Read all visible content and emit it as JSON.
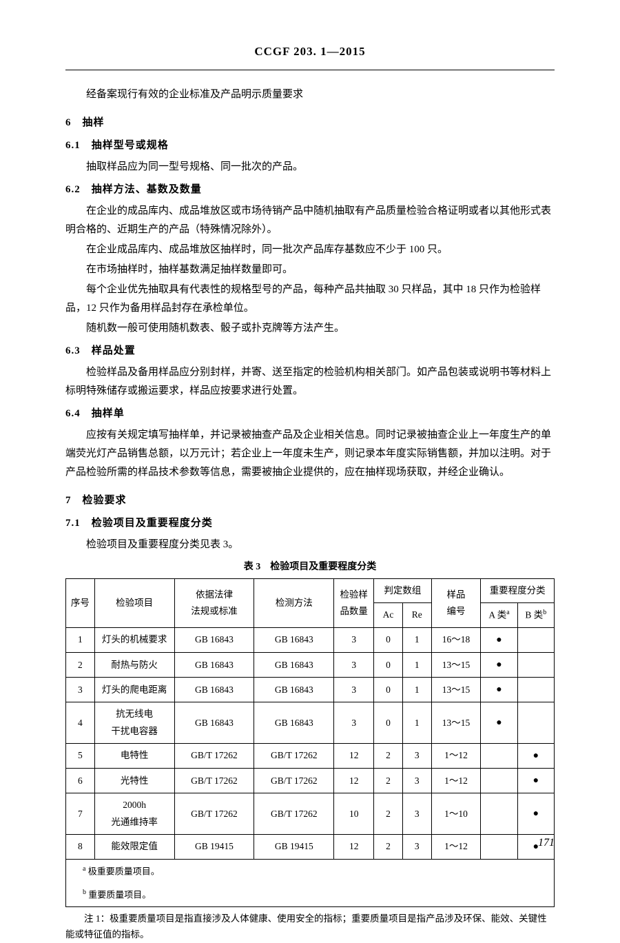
{
  "header": {
    "title": "CCGF 203. 1—2015"
  },
  "intro": {
    "line": "经备案现行有效的企业标准及产品明示质量要求"
  },
  "s6": {
    "title": "6　抽样",
    "s6_1": {
      "title": "6.1　抽样型号或规格",
      "p1": "抽取样品应为同一型号规格、同一批次的产品。"
    },
    "s6_2": {
      "title": "6.2　抽样方法、基数及数量",
      "p1": "在企业的成品库内、成品堆放区或市场待销产品中随机抽取有产品质量检验合格证明或者以其他形式表明合格的、近期生产的产品（特殊情况除外）。",
      "p2": "在企业成品库内、成品堆放区抽样时，同一批次产品库存基数应不少于 100 只。",
      "p3": "在市场抽样时，抽样基数满足抽样数量即可。",
      "p4": "每个企业优先抽取具有代表性的规格型号的产品，每种产品共抽取 30 只样品，其中 18 只作为检验样品，12 只作为备用样品封存在承检单位。",
      "p5": "随机数一般可使用随机数表、骰子或扑克牌等方法产生。"
    },
    "s6_3": {
      "title": "6.3　样品处置",
      "p1": "检验样品及备用样品应分别封样，并寄、送至指定的检验机构相关部门。如产品包装或说明书等材料上标明特殊储存或搬运要求，样品应按要求进行处置。"
    },
    "s6_4": {
      "title": "6.4　抽样单",
      "p1": "应按有关规定填写抽样单，并记录被抽查产品及企业相关信息。同时记录被抽查企业上一年度生产的单端荧光灯产品销售总额，以万元计；若企业上一年度未生产，则记录本年度实际销售额，并加以注明。对于产品检验所需的样品技术参数等信息，需要被抽企业提供的，应在抽样现场获取，并经企业确认。"
    }
  },
  "s7": {
    "title": "7　检验要求",
    "s7_1": {
      "title": "7.1　检验项目及重要程度分类",
      "p1": "检验项目及重要程度分类见表 3。"
    }
  },
  "table3": {
    "caption": "表 3　检验项目及重要程度分类",
    "head": {
      "c1": "序号",
      "c2": "检验项目",
      "c3_l1": "依据法律",
      "c3_l2": "法规或标准",
      "c4": "检测方法",
      "c5_l1": "检验样",
      "c5_l2": "品数量",
      "c6": "判定数组",
      "c6a": "Ac",
      "c6b": "Re",
      "c7_l1": "样品",
      "c7_l2": "编号",
      "c8": "重要程度分类",
      "c8a": "A 类",
      "c8a_sup": "a",
      "c8b": "B 类",
      "c8b_sup": "b"
    },
    "rows": [
      {
        "n": "1",
        "item": "灯头的机械要求",
        "law": "GB 16843",
        "method": "GB 16843",
        "qty": "3",
        "ac": "0",
        "re": "1",
        "sid": "16～18",
        "a": "●",
        "b": ""
      },
      {
        "n": "2",
        "item": "耐热与防火",
        "law": "GB 16843",
        "method": "GB 16843",
        "qty": "3",
        "ac": "0",
        "re": "1",
        "sid": "13～15",
        "a": "●",
        "b": ""
      },
      {
        "n": "3",
        "item": "灯头的爬电距离",
        "law": "GB 16843",
        "method": "GB 16843",
        "qty": "3",
        "ac": "0",
        "re": "1",
        "sid": "13～15",
        "a": "●",
        "b": ""
      },
      {
        "n": "4",
        "item_l1": "抗无线电",
        "item_l2": "干扰电容器",
        "law": "GB 16843",
        "method": "GB 16843",
        "qty": "3",
        "ac": "0",
        "re": "1",
        "sid": "13～15",
        "a": "●",
        "b": ""
      },
      {
        "n": "5",
        "item": "电特性",
        "law": "GB/T 17262",
        "method": "GB/T 17262",
        "qty": "12",
        "ac": "2",
        "re": "3",
        "sid": "1～12",
        "a": "",
        "b": "●"
      },
      {
        "n": "6",
        "item": "光特性",
        "law": "GB/T 17262",
        "method": "GB/T 17262",
        "qty": "12",
        "ac": "2",
        "re": "3",
        "sid": "1～12",
        "a": "",
        "b": "●"
      },
      {
        "n": "7",
        "item_l1": "2000h",
        "item_l2": "光通维持率",
        "law": "GB/T 17262",
        "method": "GB/T 17262",
        "qty": "10",
        "ac": "2",
        "re": "3",
        "sid": "1～10",
        "a": "",
        "b": "●"
      },
      {
        "n": "8",
        "item": "能效限定值",
        "law": "GB 19415",
        "method": "GB 19415",
        "qty": "12",
        "ac": "2",
        "re": "3",
        "sid": "1～12",
        "a": "",
        "b": "●"
      }
    ],
    "fn_a_sup": "a",
    "fn_a": " 极重要质量项目。",
    "fn_b_sup": "b",
    "fn_b": " 重要质量项目。"
  },
  "note1": "注 1：极重要质量项目是指直接涉及人体健康、使用安全的指标；重要质量项目是指产品涉及环保、能效、关键性能或特征值的指标。",
  "page": "171"
}
